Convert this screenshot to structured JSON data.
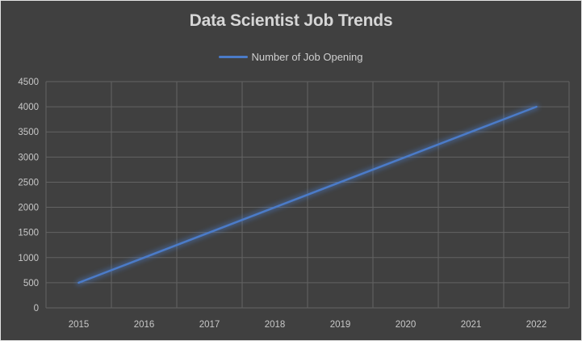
{
  "chart_data": {
    "type": "line",
    "title": "Data Scientist Job Trends",
    "categories": [
      "2015",
      "2016",
      "2017",
      "2018",
      "2019",
      "2020",
      "2021",
      "2022"
    ],
    "series": [
      {
        "name": "Number of Job Opening",
        "values": [
          500,
          1000,
          1500,
          2000,
          2500,
          3000,
          3500,
          4000
        ],
        "color": "#4B7BC8"
      }
    ],
    "xlabel": "",
    "ylabel": "",
    "ylim": [
      0,
      4500
    ],
    "ytick_step": 500,
    "yticks": [
      0,
      500,
      1000,
      1500,
      2000,
      2500,
      3000,
      3500,
      4000,
      4500
    ],
    "grid": true,
    "legend_position": "top-center",
    "line_effect": "glow",
    "colors": {
      "background": "#404040",
      "gridline": "#636363",
      "title_text": "#D6D6D6",
      "tick_text": "#C8C8C8",
      "legend_text": "#CFCFCF",
      "border": "#E3E3E3"
    }
  }
}
